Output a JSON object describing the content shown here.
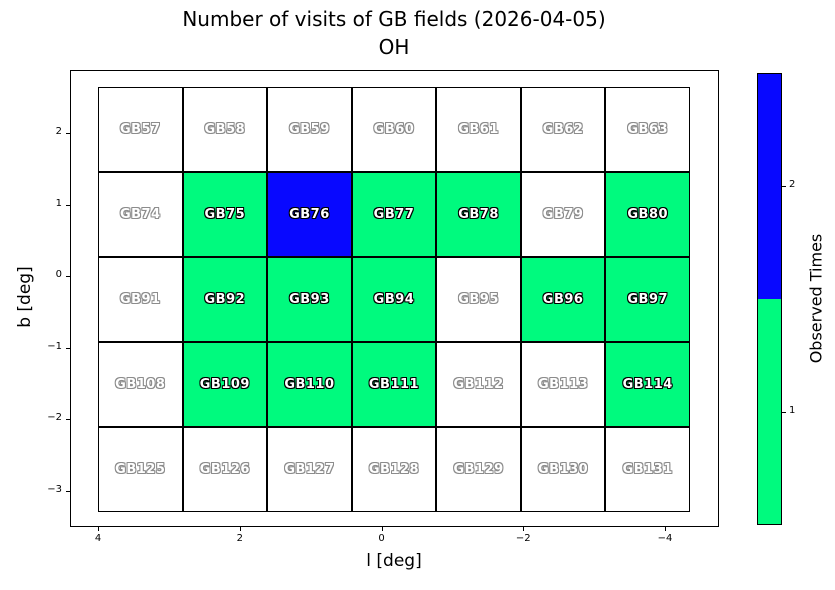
{
  "figure": {
    "title_line1": "Number of visits of GB fields (2026-04-05)",
    "title_line2": "OH"
  },
  "chart_data": {
    "type": "heatmap",
    "title": "Number of visits of GB fields (2026-04-05)",
    "subtitle": "OH",
    "xlabel": "l [deg]",
    "ylabel": "b [deg]",
    "x_ticks": [
      "4",
      "2",
      "0",
      "−2",
      "−4"
    ],
    "y_ticks": [
      "2",
      "1",
      "0",
      "−1",
      "−2",
      "−3"
    ],
    "x_axis_reversed": true,
    "xlim": [
      4.4,
      -4.8
    ],
    "ylim": [
      -3.5,
      2.9
    ],
    "grid": false,
    "value_colors": {
      "0": "#ffffff",
      "1": "#00fa7e",
      "2": "#0808ff"
    },
    "colorbar": {
      "label": "Observed Times",
      "ticks": [
        "2",
        "1"
      ],
      "segments": [
        {
          "value": 2,
          "color": "#0808ff"
        },
        {
          "value": 1,
          "color": "#00fa7e"
        }
      ]
    },
    "rows": [
      [
        {
          "label": "GB57",
          "visits": 0
        },
        {
          "label": "GB58",
          "visits": 0
        },
        {
          "label": "GB59",
          "visits": 0
        },
        {
          "label": "GB60",
          "visits": 0
        },
        {
          "label": "GB61",
          "visits": 0
        },
        {
          "label": "GB62",
          "visits": 0
        },
        {
          "label": "GB63",
          "visits": 0
        }
      ],
      [
        {
          "label": "GB74",
          "visits": 0
        },
        {
          "label": "GB75",
          "visits": 1
        },
        {
          "label": "GB76",
          "visits": 2
        },
        {
          "label": "GB77",
          "visits": 1
        },
        {
          "label": "GB78",
          "visits": 1
        },
        {
          "label": "GB79",
          "visits": 0
        },
        {
          "label": "GB80",
          "visits": 1
        }
      ],
      [
        {
          "label": "GB91",
          "visits": 0
        },
        {
          "label": "GB92",
          "visits": 1
        },
        {
          "label": "GB93",
          "visits": 1
        },
        {
          "label": "GB94",
          "visits": 1
        },
        {
          "label": "GB95",
          "visits": 0
        },
        {
          "label": "GB96",
          "visits": 1
        },
        {
          "label": "GB97",
          "visits": 1
        }
      ],
      [
        {
          "label": "GB108",
          "visits": 0
        },
        {
          "label": "GB109",
          "visits": 1
        },
        {
          "label": "GB110",
          "visits": 1
        },
        {
          "label": "GB111",
          "visits": 1
        },
        {
          "label": "GB112",
          "visits": 0
        },
        {
          "label": "GB113",
          "visits": 0
        },
        {
          "label": "GB114",
          "visits": 1
        }
      ],
      [
        {
          "label": "GB125",
          "visits": 0
        },
        {
          "label": "GB126",
          "visits": 0
        },
        {
          "label": "GB127",
          "visits": 0
        },
        {
          "label": "GB128",
          "visits": 0
        },
        {
          "label": "GB129",
          "visits": 0
        },
        {
          "label": "GB130",
          "visits": 0
        },
        {
          "label": "GB131",
          "visits": 0
        }
      ]
    ]
  }
}
